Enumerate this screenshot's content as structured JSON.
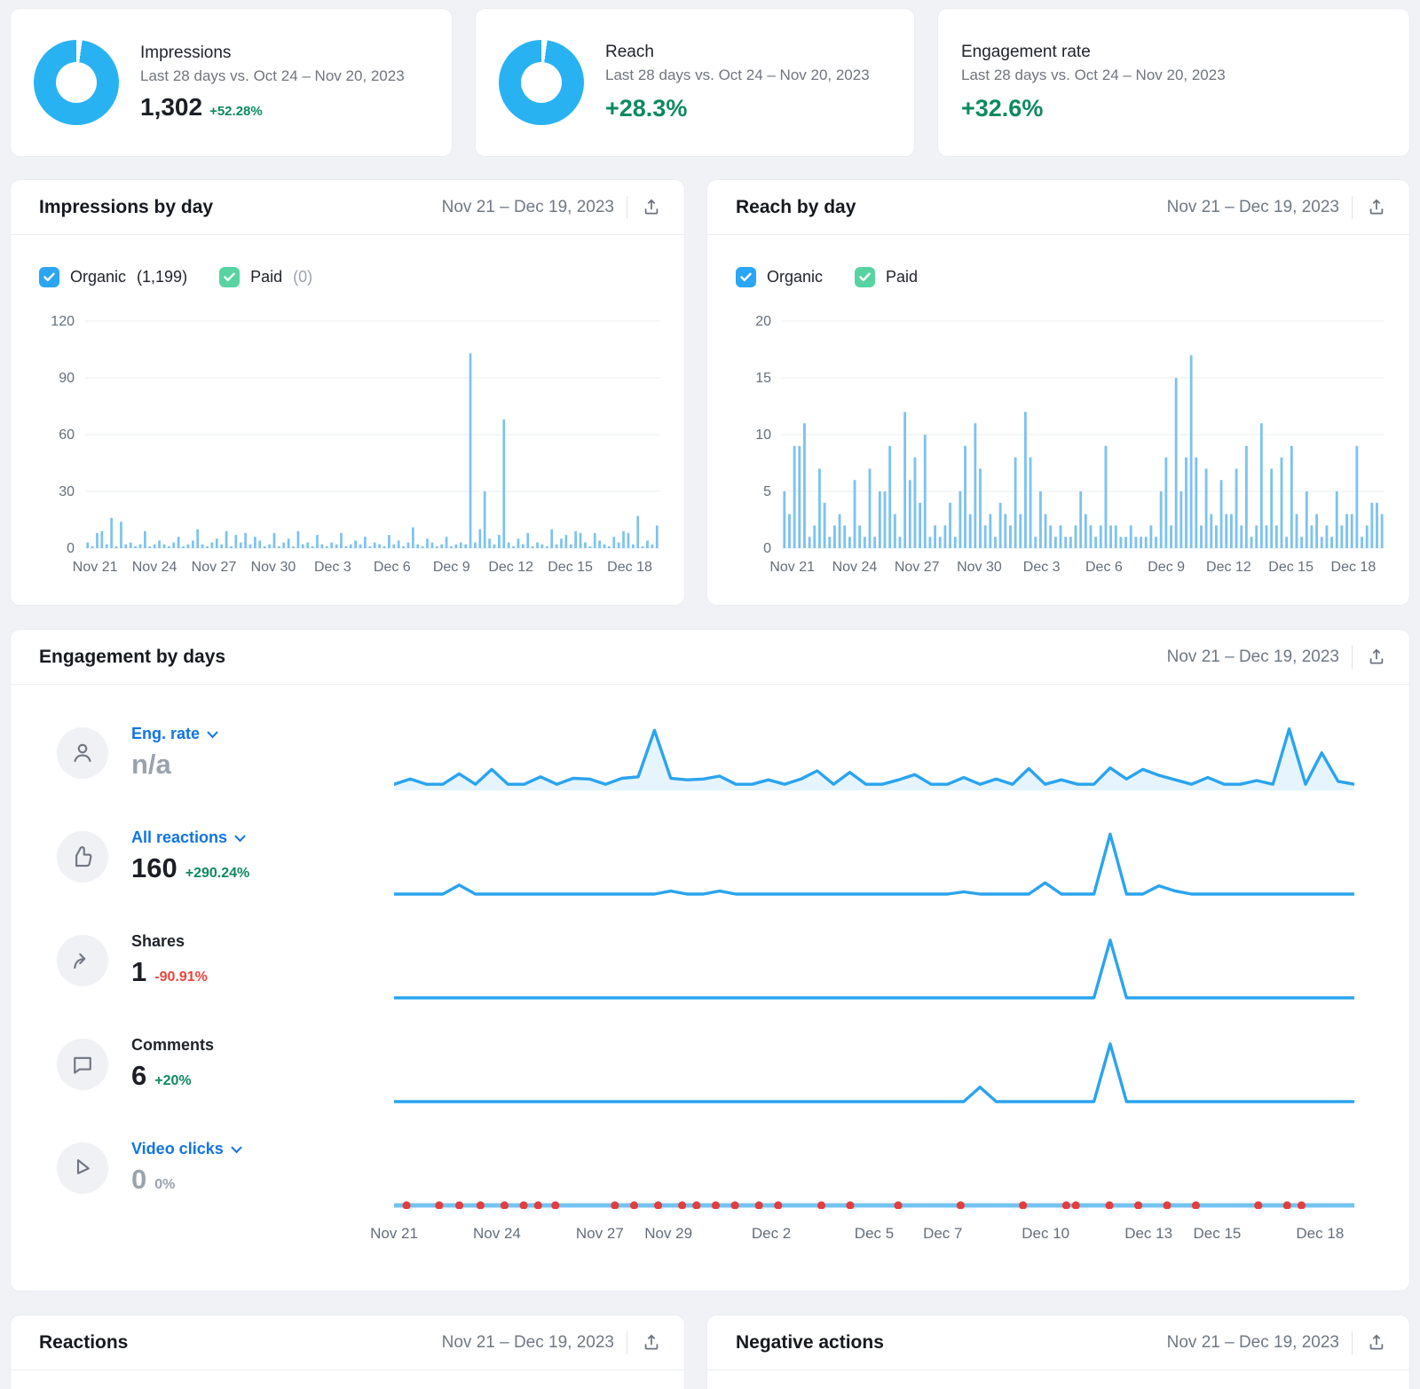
{
  "colors": {
    "donut_blue": "#29b2f2",
    "bar_blue": "#7cc2ee",
    "spark_blue": "#2aa4ef",
    "video_line_blue": "#74c3f2",
    "dot_red": "#e33d3d",
    "link_blue": "#1274e0",
    "positive_green": "#0e8a5f",
    "negative_red": "#e8443b"
  },
  "summary_cards": [
    {
      "title": "Impressions",
      "subtitle": "Last 28 days vs. Oct 24 – Nov 20, 2023",
      "value": "1,302",
      "delta": "+52.28%"
    },
    {
      "title": "Reach",
      "subtitle": "Last 28 days vs. Oct 24 – Nov 20, 2023",
      "delta": "+28.3%"
    },
    {
      "title": "Engagement rate",
      "subtitle": "Last 28 days vs. Oct 24 – Nov 20, 2023",
      "delta": "+32.6%"
    }
  ],
  "impressions_chart_card": {
    "title": "Impressions by day",
    "date_range": "Nov 21 – Dec 19, 2023",
    "legend": [
      {
        "label": "Organic",
        "count": "(1,199)"
      },
      {
        "label": "Paid",
        "count": "(0)"
      }
    ]
  },
  "reach_chart_card": {
    "title": "Reach by day",
    "date_range": "Nov 21 – Dec 19, 2023",
    "legend": [
      {
        "label": "Organic",
        "count": ""
      },
      {
        "label": "Paid",
        "count": ""
      }
    ]
  },
  "engagement": {
    "title": "Engagement by days",
    "date_range": "Nov 21 – Dec 19, 2023",
    "rows": [
      {
        "label": "Eng. rate",
        "value": "n/a",
        "delta": ""
      },
      {
        "label": "All reactions",
        "value": "160",
        "delta": "+290.24%"
      },
      {
        "label": "Shares",
        "value": "1",
        "delta": "-90.91%"
      },
      {
        "label": "Comments",
        "value": "6",
        "delta": "+20%"
      },
      {
        "label": "Video clicks",
        "value": "0",
        "delta": "0%"
      }
    ],
    "x_axis": {
      "labels": [
        "Nov 21",
        "Nov 24",
        "Nov 27",
        "Nov 29",
        "Dec 2",
        "Dec 5",
        "Dec 7",
        "Dec 10",
        "Dec 13",
        "Dec 15",
        "Dec 18"
      ],
      "day_offsets": [
        0,
        3,
        6,
        8,
        11,
        14,
        16,
        19,
        22,
        24,
        27
      ],
      "span_days": 28
    }
  },
  "bottom_cards": {
    "reactions_title": "Reactions",
    "negative_title": "Negative actions",
    "date_range": "Nov 21 – Dec 19, 2023"
  },
  "chart_data": [
    {
      "name": "impressions_by_day",
      "type": "bar",
      "title": "Impressions by day",
      "series_name": "Organic",
      "ylim": [
        0,
        120
      ],
      "y_ticks": [
        0,
        30,
        60,
        90,
        120
      ],
      "x_tick_labels": [
        "Nov 21",
        "Nov 24",
        "Nov 27",
        "Nov 30",
        "Dec 3",
        "Dec 6",
        "Dec 9",
        "Dec 12",
        "Dec 15",
        "Dec 18"
      ],
      "x_tick_days": [
        0,
        3,
        6,
        9,
        12,
        15,
        18,
        21,
        24,
        27
      ],
      "x_span_days": 29,
      "color": "#7cc2ee",
      "values": [
        3,
        1,
        8,
        9,
        2,
        16,
        1,
        14,
        2,
        3,
        1,
        2,
        9,
        1,
        2,
        4,
        2,
        1,
        3,
        6,
        1,
        2,
        4,
        10,
        2,
        1,
        3,
        5,
        2,
        9,
        1,
        7,
        3,
        8,
        2,
        6,
        4,
        1,
        2,
        8,
        1,
        3,
        5,
        1,
        9,
        2,
        3,
        1,
        7,
        2,
        1,
        3,
        2,
        8,
        1,
        2,
        4,
        2,
        6,
        1,
        3,
        2,
        1,
        7,
        2,
        4,
        1,
        3,
        11,
        2,
        1,
        5,
        3,
        1,
        2,
        6,
        1,
        2,
        3,
        2,
        103,
        3,
        10,
        30,
        5,
        2,
        7,
        68,
        3,
        1,
        5,
        2,
        8,
        1,
        3,
        2,
        1,
        10,
        2,
        5,
        7,
        2,
        9,
        8,
        3,
        1,
        8,
        4,
        2,
        1,
        6,
        3,
        9,
        8,
        2,
        17,
        1,
        4,
        2,
        12
      ]
    },
    {
      "name": "reach_by_day",
      "type": "bar",
      "title": "Reach by day",
      "series_name": "Organic",
      "ylim": [
        0,
        20
      ],
      "y_ticks": [
        0,
        5,
        10,
        15,
        20
      ],
      "x_tick_labels": [
        "Nov 21",
        "Nov 24",
        "Nov 27",
        "Nov 30",
        "Dec 3",
        "Dec 6",
        "Dec 9",
        "Dec 12",
        "Dec 15",
        "Dec 18"
      ],
      "x_tick_days": [
        0,
        3,
        6,
        9,
        12,
        15,
        18,
        21,
        24,
        27
      ],
      "x_span_days": 29,
      "color": "#7cc2ee",
      "values": [
        5,
        3,
        9,
        9,
        11,
        1,
        2,
        7,
        4,
        1,
        2,
        3,
        2,
        1,
        6,
        2,
        1,
        7,
        1,
        5,
        5,
        9,
        3,
        1,
        12,
        6,
        8,
        4,
        10,
        1,
        2,
        1,
        2,
        4,
        1,
        5,
        9,
        3,
        11,
        7,
        2,
        3,
        1,
        4,
        3,
        2,
        8,
        3,
        12,
        8,
        1,
        5,
        3,
        2,
        1,
        2,
        1,
        1,
        2,
        5,
        3,
        2,
        1,
        2,
        9,
        2,
        2,
        1,
        1,
        2,
        1,
        1,
        1,
        2,
        1,
        5,
        8,
        2,
        15,
        5,
        8,
        17,
        8,
        2,
        7,
        3,
        2,
        6,
        3,
        3,
        7,
        2,
        9,
        1,
        2,
        11,
        2,
        7,
        2,
        8,
        1,
        9,
        3,
        1,
        5,
        2,
        3,
        1,
        2,
        1,
        5,
        2,
        3,
        3,
        9,
        1,
        2,
        4,
        4,
        3
      ]
    },
    {
      "name": "eng_rate_by_day",
      "type": "line",
      "title": "Eng. rate by day",
      "ymax": 9,
      "color": "#2aa4ef",
      "fill": true,
      "values": [
        0.8,
        1.5,
        0.8,
        0.8,
        2.2,
        0.8,
        2.8,
        0.8,
        0.8,
        1.8,
        0.8,
        1.6,
        1.5,
        0.8,
        1.6,
        1.8,
        8,
        1.6,
        1.4,
        1.5,
        1.9,
        0.8,
        0.8,
        1.4,
        0.8,
        1.5,
        2.6,
        0.8,
        2.4,
        0.8,
        0.8,
        1.4,
        2.1,
        0.8,
        0.8,
        1.7,
        0.8,
        1.5,
        0.8,
        2.9,
        0.8,
        1.4,
        0.8,
        0.8,
        3,
        1.5,
        2.8,
        2,
        1.4,
        0.8,
        1.7,
        0.8,
        0.8,
        1.3,
        0.8,
        8.2,
        0.8,
        5,
        1.2,
        0.8
      ]
    },
    {
      "name": "all_reactions_by_day",
      "type": "line",
      "title": "All reactions by day",
      "ymax": 9,
      "color": "#2aa4ef",
      "values": [
        0,
        0,
        0,
        0,
        1.2,
        0,
        0,
        0,
        0,
        0,
        0,
        0,
        0,
        0,
        0,
        0,
        0,
        0.4,
        0,
        0,
        0.4,
        0,
        0,
        0,
        0,
        0,
        0,
        0,
        0,
        0,
        0,
        0,
        0,
        0,
        0,
        0.3,
        0,
        0,
        0,
        0,
        1.5,
        0,
        0,
        0,
        8,
        0,
        0,
        1.1,
        0.4,
        0,
        0,
        0,
        0,
        0,
        0,
        0,
        0,
        0,
        0,
        0
      ]
    },
    {
      "name": "shares_by_day",
      "type": "line",
      "title": "Shares by day",
      "ymax": 7,
      "color": "#2aa4ef",
      "values": [
        0,
        0,
        0,
        0,
        0,
        0,
        0,
        0,
        0,
        0,
        0,
        0,
        0,
        0,
        0,
        0,
        0,
        0,
        0,
        0,
        0,
        0,
        0,
        0,
        0,
        0,
        0,
        0,
        0,
        0,
        0,
        0,
        0,
        0,
        0,
        0,
        0,
        0,
        0,
        0,
        0,
        0,
        0,
        0,
        6,
        0,
        0,
        0,
        0,
        0,
        0,
        0,
        0,
        0,
        0,
        0,
        0,
        0,
        0,
        0
      ]
    },
    {
      "name": "comments_by_day",
      "type": "line",
      "title": "Comments by day",
      "ymax": 7,
      "color": "#2aa4ef",
      "values": [
        0,
        0,
        0,
        0,
        0,
        0,
        0,
        0,
        0,
        0,
        0,
        0,
        0,
        0,
        0,
        0,
        0,
        0,
        0,
        0,
        0,
        0,
        0,
        0,
        0,
        0,
        0,
        0,
        0,
        0,
        0,
        0,
        0,
        0,
        0,
        0,
        1.5,
        0,
        0,
        0,
        0,
        0,
        0,
        0,
        6,
        0,
        0,
        0,
        0,
        0,
        0,
        0,
        0,
        0,
        0,
        0,
        0,
        0,
        0,
        0
      ]
    },
    {
      "name": "video_clicks_by_day",
      "type": "line",
      "title": "Video clicks by day",
      "ymax": 1,
      "color": "#74c3f2",
      "thick": true,
      "dot_color": "#e33d3d",
      "dot_fractions": [
        0.013,
        0.047,
        0.068,
        0.09,
        0.115,
        0.135,
        0.15,
        0.168,
        0.23,
        0.25,
        0.275,
        0.3,
        0.315,
        0.335,
        0.355,
        0.38,
        0.4,
        0.445,
        0.475,
        0.525,
        0.59,
        0.655,
        0.7,
        0.71,
        0.745,
        0.775,
        0.805,
        0.835,
        0.9,
        0.93,
        0.945
      ],
      "values": [
        0,
        0,
        0,
        0,
        0,
        0,
        0,
        0,
        0,
        0,
        0,
        0,
        0,
        0,
        0,
        0,
        0,
        0,
        0,
        0,
        0,
        0,
        0,
        0,
        0,
        0,
        0,
        0,
        0,
        0,
        0,
        0,
        0,
        0,
        0,
        0,
        0,
        0,
        0,
        0,
        0,
        0,
        0,
        0,
        0,
        0,
        0,
        0,
        0,
        0,
        0,
        0,
        0,
        0,
        0,
        0,
        0,
        0,
        0,
        0
      ]
    }
  ]
}
